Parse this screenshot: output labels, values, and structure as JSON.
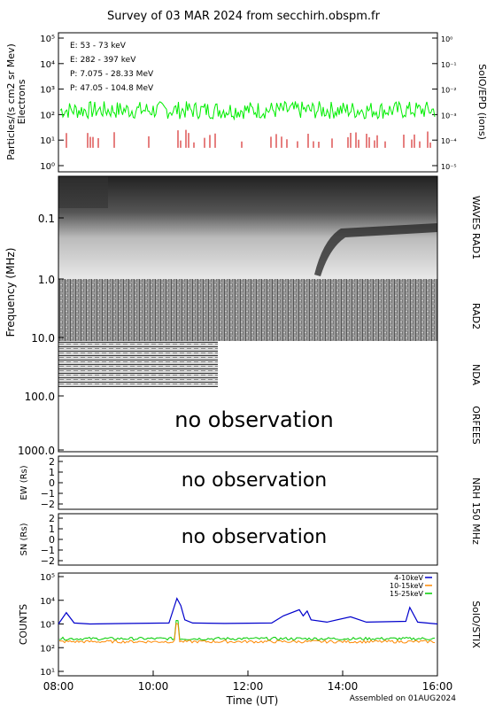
{
  "header": {
    "title": "Survey of 03 MAR 2024 from secchirh.obspm.fr"
  },
  "footer": {
    "assembled": "Assembled on 01AUG2024"
  },
  "colors": {
    "e_low": "#00ee00",
    "e_high": "#cc0000",
    "p_low": "#000000",
    "p_high": "#0000cc",
    "stix_4_10": "#0000cc",
    "stix_10_15": "#ff8800",
    "stix_15_25": "#00cc00",
    "no_obs": "#aaaaaa"
  },
  "chart_data": [
    {
      "type": "line",
      "panel": "SolO/EPD",
      "ylabel": "Particles/(s cm2 sr Mev)",
      "ylabel2": "Electrons",
      "right_label": "SolO/EPD  (ions)",
      "yscale": "log",
      "ylim": [
        1,
        100000
      ],
      "y_ticks": [
        "10⁰",
        "10¹",
        "10²",
        "10³",
        "10⁴",
        "10⁵"
      ],
      "y2_ticks": [
        "10⁻⁵",
        "10⁻⁴",
        "10⁻³",
        "10⁻²",
        "10⁻¹",
        "10⁰"
      ],
      "series": [
        {
          "name": "E: 53 - 73 keV",
          "approx_level": 150
        },
        {
          "name": "E: 282 - 397 keV",
          "approx_level": 8
        },
        {
          "name": "P: 7.075 - 28.33 MeV"
        },
        {
          "name": "P: 47.05 - 104.8 MeV"
        }
      ]
    },
    {
      "type": "heatmap",
      "panel": "WAVES RAD1 / RAD2 / NDA / ORFEES",
      "ylabel": "Frequency (MHz)",
      "y_ticks": [
        "0.1",
        "1.0",
        "10.0",
        "100.0",
        "1000.0"
      ],
      "right_labels": [
        "WAVES RAD1",
        "RAD2",
        "NDA",
        "ORFEES"
      ],
      "annotation": "no observation"
    },
    {
      "type": "line",
      "panel": "NRH 150 MHz EW",
      "ylabel": "EW (Rs)",
      "y_ticks": [
        "2",
        "1",
        "0",
        "−1",
        "−2"
      ],
      "annotation": "no observation"
    },
    {
      "type": "line",
      "panel": "NRH 150 MHz SN",
      "ylabel": "SN (Rs)",
      "y_ticks": [
        "2",
        "1",
        "0",
        "−1",
        "−2"
      ],
      "annotation": "no observation",
      "right_label": "NRH 150 MHz"
    },
    {
      "type": "line",
      "panel": "SolO/STIX",
      "ylabel": "COUNTS",
      "right_label": "SolO/STIX",
      "yscale": "log",
      "ylim": [
        10,
        100000
      ],
      "y_ticks": [
        "10¹",
        "10²",
        "10³",
        "10⁴",
        "10⁵"
      ],
      "x_ticks": [
        "08:00",
        "10:00",
        "12:00",
        "14:00",
        "16:00"
      ],
      "xlabel": "Time (UT)",
      "series": [
        {
          "name": "4-10keV",
          "x": [
            "08:00",
            "08:10",
            "08:20",
            "08:40",
            "09:30",
            "10:20",
            "10:30",
            "10:35",
            "10:40",
            "10:50",
            "11:30",
            "12:30",
            "12:45",
            "13:05",
            "13:10",
            "13:15",
            "13:20",
            "13:40",
            "14:10",
            "14:30",
            "15:20",
            "15:25",
            "15:35",
            "16:00"
          ],
          "y": [
            1000,
            3000,
            1100,
            1000,
            1050,
            1100,
            12000,
            6000,
            1500,
            1100,
            1050,
            1100,
            2200,
            4000,
            2200,
            3500,
            1500,
            1200,
            2000,
            1200,
            1300,
            5000,
            1200,
            1000
          ]
        },
        {
          "name": "10-15keV",
          "approx_level": 180
        },
        {
          "name": "15-25keV",
          "approx_level": 240
        }
      ]
    }
  ]
}
